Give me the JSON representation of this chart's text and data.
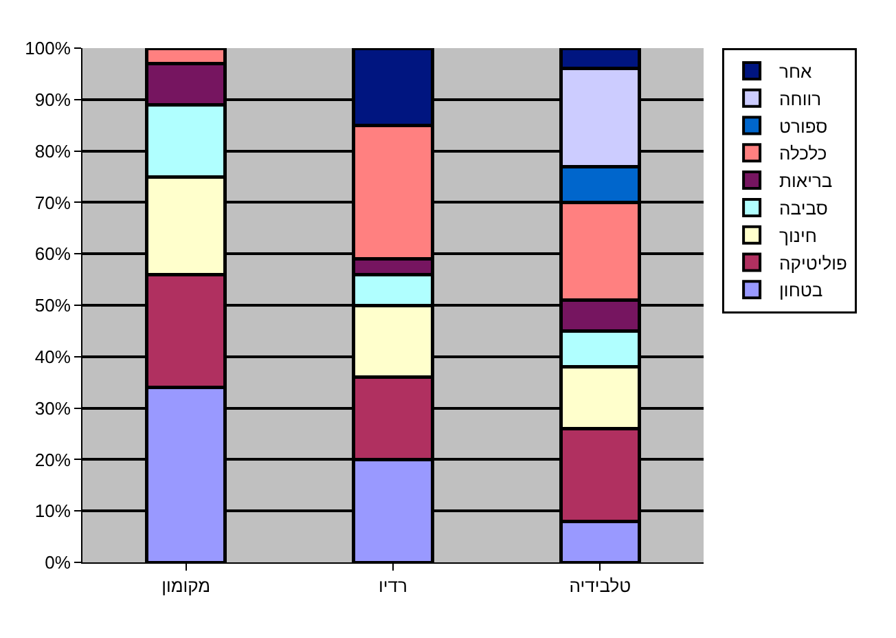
{
  "chart_data": {
    "type": "bar",
    "stacked": true,
    "categories": [
      "מקומון",
      "רדיו",
      "טלבידיה"
    ],
    "series": [
      {
        "name": "בטחון",
        "color": "#9999ff",
        "values": [
          34,
          20,
          8
        ]
      },
      {
        "name": "פוליטיקה",
        "color": "#b03060",
        "values": [
          22,
          16,
          18
        ]
      },
      {
        "name": "חינוך",
        "color": "#ffffcc",
        "values": [
          19,
          14,
          12
        ]
      },
      {
        "name": "סביבה",
        "color": "#b0ffff",
        "values": [
          14,
          6,
          7
        ]
      },
      {
        "name": "בריאות",
        "color": "#761560",
        "values": [
          8,
          3,
          6
        ]
      },
      {
        "name": "כלכלה",
        "color": "#ff8080",
        "values": [
          3,
          26,
          19
        ]
      },
      {
        "name": "ספורט",
        "color": "#0066cc",
        "values": [
          null,
          null,
          7
        ]
      },
      {
        "name": "רווחה",
        "color": "#ccccff",
        "values": [
          null,
          null,
          19
        ]
      },
      {
        "name": "אחר",
        "color": "#001580",
        "values": [
          null,
          15,
          4
        ]
      }
    ],
    "ylim": [
      0,
      100
    ],
    "yticks": [
      {
        "value": 0,
        "label": "0%"
      },
      {
        "value": 10,
        "label": "10%"
      },
      {
        "value": 20,
        "label": "20%"
      },
      {
        "value": 30,
        "label": "30%"
      },
      {
        "value": 40,
        "label": "40%"
      },
      {
        "value": 50,
        "label": "50%"
      },
      {
        "value": 60,
        "label": "60%"
      },
      {
        "value": 70,
        "label": "70%"
      },
      {
        "value": 80,
        "label": "80%"
      },
      {
        "value": 90,
        "label": "90%"
      },
      {
        "value": 100,
        "label": "100%"
      }
    ],
    "grid": "y",
    "legend": "right"
  }
}
